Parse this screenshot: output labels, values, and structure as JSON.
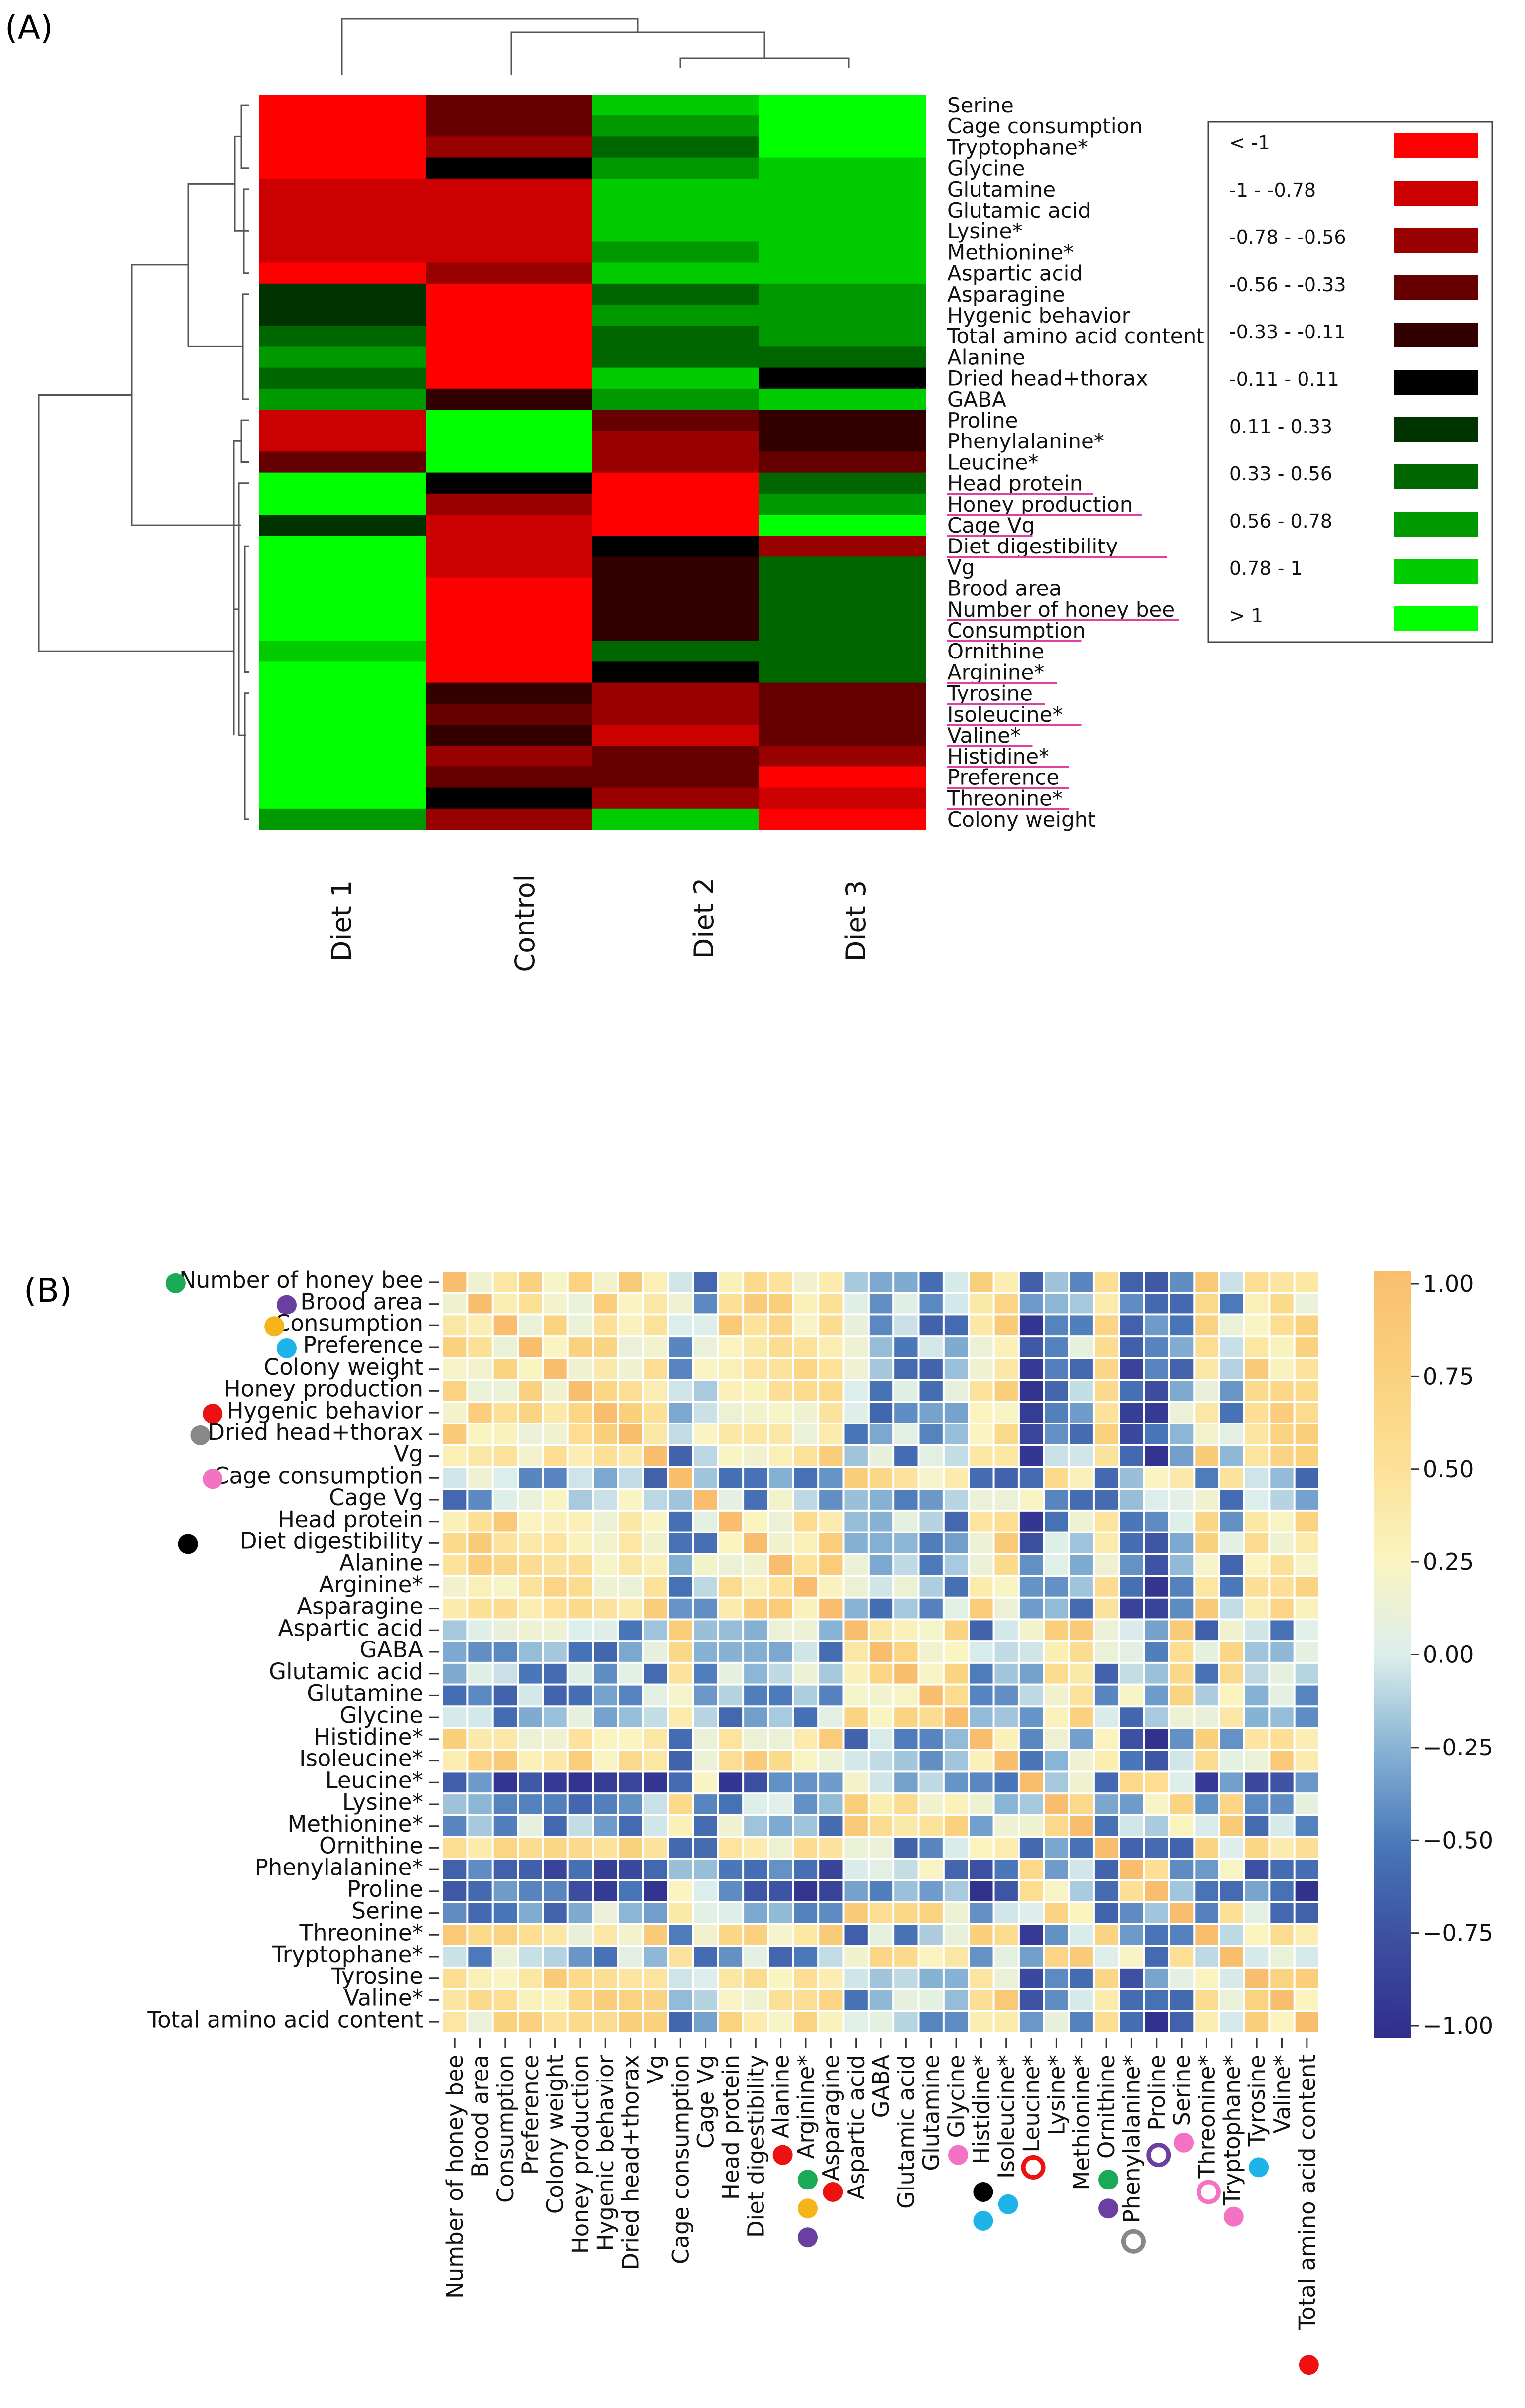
{
  "chart_data": [
    {
      "type": "heatmap",
      "panel_label": "(A)",
      "columns": [
        "Diet 1",
        "Control",
        "Diet 2",
        "Diet 3"
      ],
      "rows": [
        "Serine",
        "Cage consumption",
        "Tryptophane*",
        "Glycine",
        "Glutamine",
        "Glutamic acid",
        "Lysine*",
        "Methionine*",
        "Aspartic acid",
        "Asparagine",
        "Hygenic behavior",
        "Total amino acid content",
        "Alanine",
        "Dried head+thorax",
        "GABA",
        "Proline",
        "Phenylalanine*",
        "Leucine*",
        "Head protein",
        "Honey production",
        "Cage Vg",
        "Diet digestibility",
        "Vg",
        "Brood area",
        "Number of honey bee",
        "Consumption",
        "Ornithine",
        "Arginine*",
        "Tyrosine",
        "Isoleucine*",
        "Valine*",
        "Histidine*",
        "Preference",
        "Threonine*",
        "Colony weight"
      ],
      "underlined_rows": [
        "Head protein",
        "Honey production",
        "Cage Vg",
        "Diet digestibility",
        "Number of honey bee",
        "Consumption",
        "Arginine*",
        "Tyrosine",
        "Isoleucine*",
        "Valine*",
        "Histidine*",
        "Preference",
        "Threonine*"
      ],
      "values": [
        [
          -1.2,
          -0.4,
          0.9,
          1.1
        ],
        [
          -1.2,
          -0.4,
          0.6,
          1.2
        ],
        [
          -1.2,
          -0.6,
          0.4,
          1.2
        ],
        [
          -1.2,
          0.0,
          0.7,
          0.8
        ],
        [
          -0.9,
          -0.9,
          0.9,
          0.9
        ],
        [
          -0.9,
          -0.9,
          0.9,
          0.9
        ],
        [
          -0.9,
          -0.9,
          0.8,
          0.9
        ],
        [
          -0.9,
          -0.9,
          0.7,
          0.9
        ],
        [
          -1.2,
          -0.6,
          0.9,
          0.9
        ],
        [
          0.3,
          -1.2,
          0.5,
          0.6
        ],
        [
          0.3,
          -1.2,
          0.7,
          0.6
        ],
        [
          0.5,
          -1.2,
          0.5,
          0.6
        ],
        [
          0.7,
          -1.2,
          0.5,
          0.4
        ],
        [
          0.5,
          -1.2,
          0.9,
          0.0
        ],
        [
          0.7,
          -0.2,
          0.7,
          0.9
        ],
        [
          -0.9,
          1.2,
          -0.4,
          -0.3
        ],
        [
          -0.9,
          1.2,
          -0.6,
          -0.3
        ],
        [
          -0.4,
          1.2,
          -0.7,
          -0.5
        ],
        [
          1.2,
          0.0,
          -1.2,
          0.4
        ],
        [
          1.2,
          -0.7,
          -1.2,
          0.6
        ],
        [
          0.2,
          -0.9,
          -1.2,
          1.2
        ],
        [
          1.2,
          -0.9,
          0.0,
          -0.7
        ],
        [
          1.2,
          -0.9,
          -0.3,
          0.4
        ],
        [
          1.2,
          -1.2,
          -0.3,
          0.5
        ],
        [
          1.2,
          -1.2,
          -0.3,
          0.5
        ],
        [
          1.2,
          -1.2,
          -0.3,
          0.4
        ],
        [
          0.8,
          -1.2,
          0.4,
          0.5
        ],
        [
          1.2,
          -1.2,
          0.0,
          0.4
        ],
        [
          1.2,
          -0.3,
          -0.6,
          -0.5
        ],
        [
          1.2,
          -0.4,
          -0.7,
          -0.5
        ],
        [
          1.2,
          -0.3,
          -0.9,
          -0.4
        ],
        [
          1.2,
          -0.6,
          -0.4,
          -0.6
        ],
        [
          1.2,
          -0.4,
          -0.4,
          -1.2
        ],
        [
          1.2,
          0.0,
          -0.7,
          -0.9
        ],
        [
          0.7,
          -0.7,
          0.9,
          -1.2
        ]
      ],
      "legend_labels": [
        "< -1",
        "-1 - -0.78",
        "-0.78 - -0.56",
        "-0.56 - -0.33",
        "-0.33 - -0.11",
        "-0.11 - 0.11",
        "0.11 - 0.33",
        "0.33 - 0.56",
        "0.56 - 0.78",
        "0.78 - 1",
        "> 1"
      ],
      "legend_colors": [
        "#ff0000",
        "#cc0000",
        "#990000",
        "#660000",
        "#330000",
        "#000000",
        "#003300",
        "#006600",
        "#009900",
        "#00cc00",
        "#00ff00"
      ]
    },
    {
      "type": "heatmap",
      "panel_label": "(B)",
      "row_labels": [
        "Number of honey bee",
        "Brood area",
        "Consumption",
        "Preference",
        "Colony weight",
        "Honey production",
        "Hygenic behavior",
        "Dried head+thorax",
        "Vg",
        "Cage consumption",
        "Cage Vg",
        "Head protein",
        "Diet digestibility",
        "Alanine",
        "Arginine*",
        "Asparagine",
        "Aspartic acid",
        "GABA",
        "Glutamic acid",
        "Glutamine",
        "Glycine",
        "Histidine*",
        "Isoleucine*",
        "Leucine*",
        "Lysine*",
        "Methionine*",
        "Ornithine",
        "Phenylalanine*",
        "Proline",
        "Serine",
        "Threonine*",
        "Tryptophane*",
        "Tyrosine",
        "Valine*",
        "Total amino acid content"
      ],
      "col_labels": [
        "Number of honey bee",
        "Brood area",
        "Consumption",
        "Preference",
        "Colony weight",
        "Honey production",
        "Hygenic behavior",
        "Dried head+thorax",
        "Vg",
        "Cage consumption",
        "Cage Vg",
        "Head protein",
        "Diet digestibility",
        "Alanine",
        "Arginine*",
        "Asparagine",
        "Aspartic acid",
        "GABA",
        "Glutamic acid",
        "Glutamine",
        "Glycine",
        "Histidine*",
        "Isoleucine*",
        "Leucine*",
        "Lysine*",
        "Methionine*",
        "Ornithine",
        "Phenylalanine*",
        "Proline",
        "Serine",
        "Threonine*",
        "Tryptophane*",
        "Tyrosine",
        "Valine*",
        "Total amino acid content"
      ],
      "groups": {
        "A": [
          "Number of honey bee",
          "Brood area",
          "Consumption",
          "Preference",
          "Colony weight",
          "Honey production",
          "Hygenic behavior",
          "Dried head+thorax",
          "Vg",
          "Head protein",
          "Diet digestibility",
          "Alanine",
          "Arginine*",
          "Asparagine",
          "Histidine*",
          "Isoleucine*",
          "Ornithine",
          "Threonine*",
          "Tyrosine",
          "Valine*",
          "Total amino acid content"
        ],
        "B": [
          "Cage consumption",
          "Aspartic acid",
          "GABA",
          "Glutamic acid",
          "Glutamine",
          "Glycine",
          "Lysine*",
          "Methionine*",
          "Serine",
          "Tryptophane*"
        ],
        "C": [
          "Leucine*",
          "Phenylalanine*",
          "Proline"
        ]
      },
      "colorbar": {
        "ticks": [
          "1.00",
          "0.75",
          "0.50",
          "0.25",
          "0.00",
          "−0.25",
          "−0.50",
          "−0.75",
          "−1.00"
        ],
        "range": [
          -1,
          1
        ]
      },
      "row_markers": [
        {
          "label": "Number of honey bee",
          "color": "#1aaa55",
          "style": "filled"
        },
        {
          "label": "Brood area",
          "color": "#6b3fa0",
          "style": "filled"
        },
        {
          "label": "Consumption",
          "color": "#f5b41a",
          "style": "filled"
        },
        {
          "label": "Preference",
          "color": "#1eb4ea",
          "style": "filled"
        },
        {
          "label": "Hygenic behavior",
          "color": "#ee1111",
          "style": "filled"
        },
        {
          "label": "Dried head+thorax",
          "color": "#888888",
          "style": "filled"
        },
        {
          "label": "Cage consumption",
          "color": "#f472c4",
          "style": "filled"
        },
        {
          "label": "Diet digestibility",
          "color": "#000000",
          "style": "filled"
        }
      ],
      "col_markers": [
        {
          "label": "Alanine",
          "colors": [
            "#ee1111"
          ],
          "style": "filled"
        },
        {
          "label": "Arginine*",
          "colors": [
            "#1aaa55",
            "#f5b41a",
            "#6b3fa0"
          ],
          "style": "filled"
        },
        {
          "label": "Asparagine",
          "colors": [
            "#ee1111"
          ],
          "style": "filled"
        },
        {
          "label": "Glycine",
          "colors": [
            "#f472c4"
          ],
          "style": "filled"
        },
        {
          "label": "Histidine*",
          "colors": [
            "#000000",
            "#1eb4ea"
          ],
          "style": "filled"
        },
        {
          "label": "Isoleucine*",
          "colors": [
            "#1eb4ea"
          ],
          "style": "filled"
        },
        {
          "label": "Leucine*",
          "colors": [
            "#ee1111"
          ],
          "style": "open"
        },
        {
          "label": "Ornithine",
          "colors": [
            "#1aaa55",
            "#6b3fa0"
          ],
          "style": "filled"
        },
        {
          "label": "Phenylalanine*",
          "colors": [
            "#888888"
          ],
          "style": "open"
        },
        {
          "label": "Proline",
          "colors": [
            "#6b3fa0"
          ],
          "style": "open"
        },
        {
          "label": "Serine",
          "colors": [
            "#f472c4"
          ],
          "style": "filled"
        },
        {
          "label": "Threonine*",
          "colors": [
            "#f472c4"
          ],
          "style": "open"
        },
        {
          "label": "Tryptophane*",
          "colors": [
            "#f472c4"
          ],
          "style": "filled"
        },
        {
          "label": "Tyrosine",
          "colors": [
            "#1eb4ea"
          ],
          "style": "filled"
        },
        {
          "label": "Total amino acid content",
          "colors": [
            "#ee1111"
          ],
          "style": "filled"
        }
      ]
    }
  ]
}
